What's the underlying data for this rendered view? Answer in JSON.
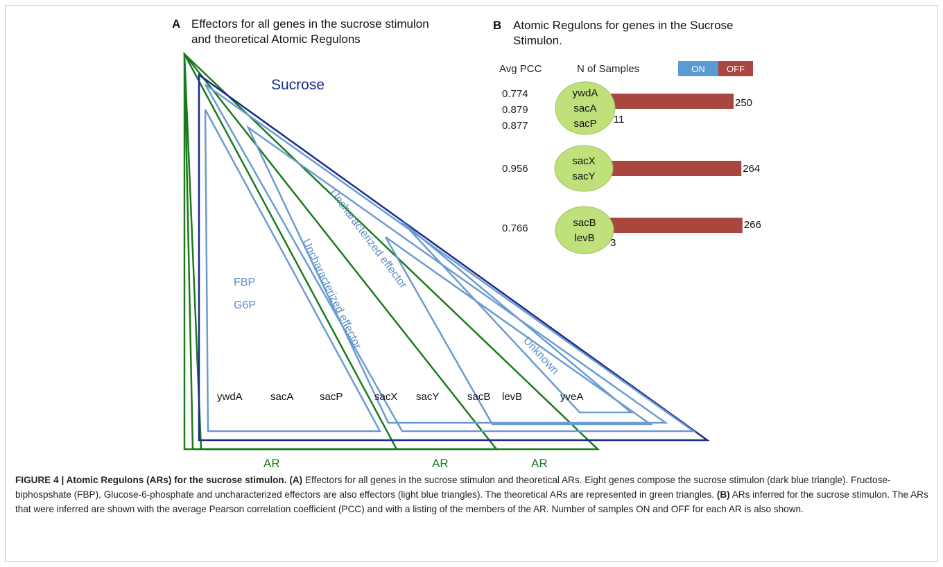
{
  "panel_a": {
    "letter": "A",
    "title_lines": [
      "Effectors for all genes in the sucrose stimulon",
      "and theoretical Atomic Regulons"
    ],
    "sucrose_label": "Sucrose",
    "effectors": [
      "FBP",
      "G6P"
    ],
    "uncharacterized_label": "Uncharacterized effector",
    "unknown_label": "Unknown",
    "genes": [
      "ywdA",
      "sacA",
      "sacP",
      "sacX",
      "sacY",
      "sacB",
      "levB",
      "yveA"
    ],
    "ar_label": "AR",
    "colors": {
      "stimulon": "#1a2a8c",
      "effector": "#6b9bd1",
      "ar": "#1a7a1a"
    }
  },
  "panel_b": {
    "letter": "B",
    "title_lines": [
      "Atomic Regulons for genes in the Sucrose",
      "Stimulon."
    ],
    "avg_pcc_header": "Avg PCC",
    "n_samples_header": "N of Samples",
    "legend_on": "ON",
    "legend_off": "OFF",
    "colors": {
      "on": "#5b9bd5",
      "off": "#a9463f",
      "bubble": "#bfe07a"
    },
    "regulons": [
      {
        "genes": [
          "ywdA",
          "sacA",
          "sacP"
        ],
        "pcc": [
          "0.774",
          "0.879",
          "0.877"
        ],
        "off": 250,
        "on": 11
      },
      {
        "genes": [
          "sacX",
          "sacY"
        ],
        "pcc": [
          "0.956"
        ],
        "off": 264,
        "on": 0
      },
      {
        "genes": [
          "sacB",
          "levB"
        ],
        "pcc": [
          "0.766"
        ],
        "off": 266,
        "on": 3
      }
    ]
  },
  "caption": {
    "label": "FIGURE 4 | Atomic Regulons (ARs) for the sucrose stimulon.",
    "a_marker": "(A)",
    "a_text": " Effectors for all genes in the sucrose stimulon and theoretical ARs. Eight genes compose the sucrose stimulon (dark blue triangle). Fructose-biphospshate (FBP), Glucose-6-phosphate and uncharacterized effectors are also effectors (light blue triangles). The theoretical ARs are represented in green triangles.",
    "b_marker": "(B)",
    "b_text": " ARs inferred for the sucrose stimulon. The ARs that were inferred are shown with the average Pearson correlation coefficient (PCC) and with a listing of the members of the AR. Number of samples ON and OFF for each AR is also shown."
  }
}
